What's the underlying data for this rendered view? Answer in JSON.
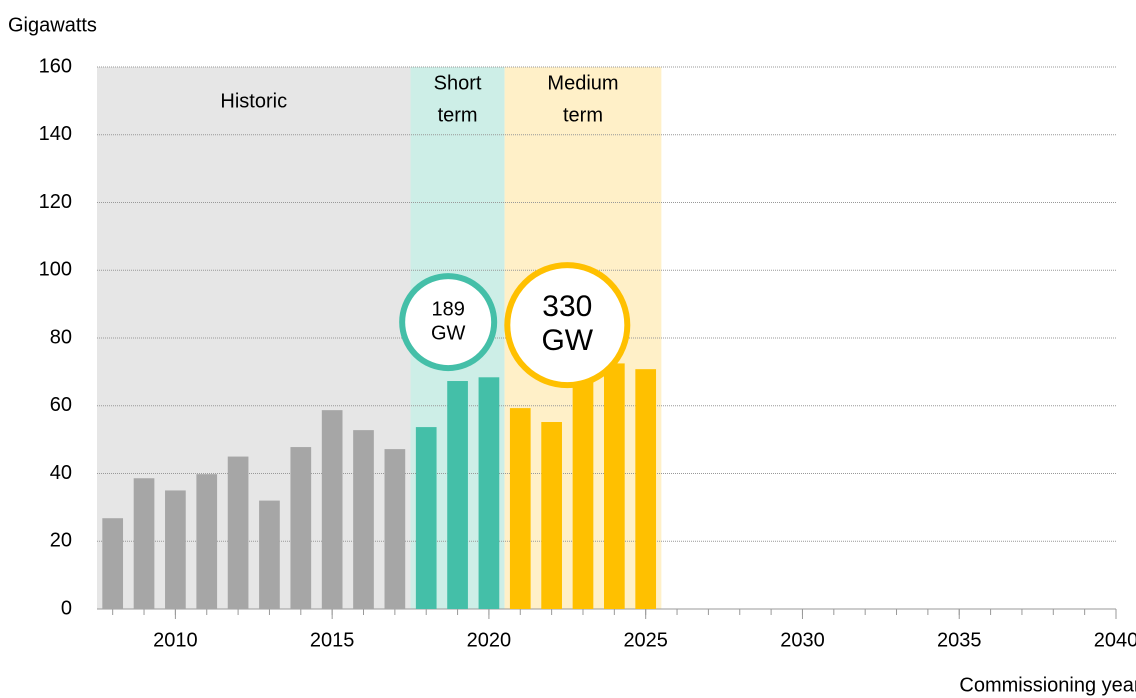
{
  "chart_data": {
    "type": "bar",
    "y_axis_label": "Gigawatts",
    "x_axis_label": "Commissioning year",
    "x": [
      2008,
      2009,
      2010,
      2011,
      2012,
      2013,
      2014,
      2015,
      2016,
      2017,
      2018,
      2019,
      2020,
      2021,
      2022,
      2023,
      2024,
      2025
    ],
    "values": [
      26.8,
      38.6,
      35,
      39.8,
      45,
      32,
      47.8,
      58.7,
      52.8,
      47.2,
      53.7,
      67.3,
      68.4,
      59.3,
      55.2,
      72,
      72.5,
      70.8
    ],
    "colors": [
      "#a6a6a6",
      "#a6a6a6",
      "#a6a6a6",
      "#a6a6a6",
      "#a6a6a6",
      "#a6a6a6",
      "#a6a6a6",
      "#a6a6a6",
      "#a6a6a6",
      "#a6a6a6",
      "#44bfa8",
      "#44bfa8",
      "#44bfa8",
      "#ffc000",
      "#ffc000",
      "#ffc000",
      "#ffc000",
      "#ffc000"
    ],
    "xlim": [
      2007.5,
      2040
    ],
    "xticks": [
      2010,
      2015,
      2020,
      2025,
      2030,
      2035,
      2040
    ],
    "ylim": [
      0,
      160
    ],
    "yticks": [
      0,
      20,
      40,
      60,
      80,
      100,
      120,
      140,
      160
    ],
    "grid": true,
    "spans": [
      {
        "lines": [
          "Historic"
        ],
        "from": 2007.5,
        "to": 2017.5,
        "color": "#e6e6e6"
      },
      {
        "lines": [
          "Short",
          "term"
        ],
        "from": 2017.5,
        "to": 2020.5,
        "color": "#cdeee7"
      },
      {
        "lines": [
          "Medium",
          "term"
        ],
        "from": 2020.5,
        "to": 2025.5,
        "color": "#fff0c8"
      }
    ],
    "annotations": [
      {
        "lines": [
          "189",
          "GW"
        ],
        "x": 2018.7,
        "y": 84.7,
        "color": "#44bfa8"
      },
      {
        "lines": [
          "330",
          "GW"
        ],
        "x": 2022.5,
        "y": 83.8,
        "color": "#ffc000"
      }
    ]
  }
}
